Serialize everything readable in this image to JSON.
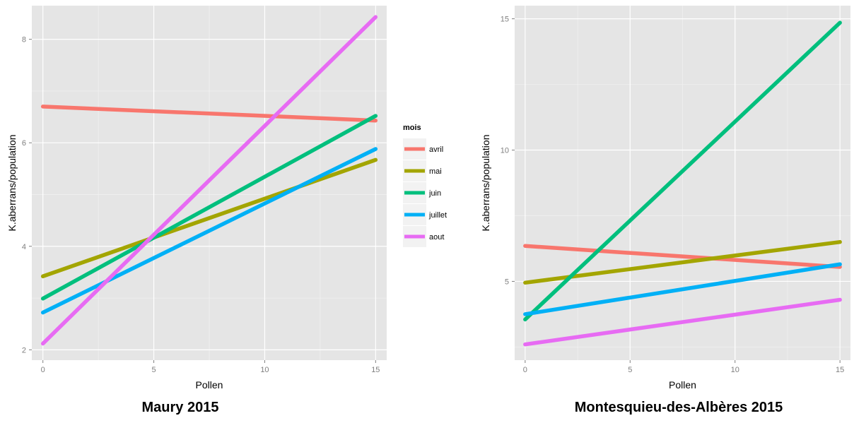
{
  "colors": {
    "avril": "#F8766D",
    "mai": "#A3A500",
    "juin": "#00BF7D",
    "juillet": "#00B0F6",
    "aout": "#E76BF3",
    "panel_bg": "#E5E5E5",
    "grid": "#FFFFFF"
  },
  "chart_data": [
    {
      "type": "line",
      "caption": "Maury 2015",
      "xlabel": "Pollen",
      "ylabel": "K.aberrans/population",
      "xlim": [
        -0.5,
        15.5
      ],
      "ylim": [
        1.8,
        8.65
      ],
      "xticks": [
        0,
        5,
        10,
        15
      ],
      "xtick_labels": [
        "0",
        "5",
        "10",
        "15"
      ],
      "yticks": [
        2,
        4,
        6,
        8
      ],
      "ytick_labels": [
        "2",
        "4",
        "6",
        "8"
      ],
      "grid": true,
      "legend": {
        "title": "mois",
        "position": "right",
        "entries": [
          "avril",
          "mai",
          "juin",
          "juillet",
          "aout"
        ]
      },
      "series": [
        {
          "name": "avril",
          "x": [
            0,
            15
          ],
          "y": [
            6.7,
            6.43
          ]
        },
        {
          "name": "mai",
          "x": [
            0,
            15
          ],
          "y": [
            3.42,
            5.67
          ]
        },
        {
          "name": "juin",
          "x": [
            0,
            15
          ],
          "y": [
            2.99,
            6.52
          ]
        },
        {
          "name": "juillet",
          "x": [
            0,
            15
          ],
          "y": [
            2.72,
            5.88
          ]
        },
        {
          "name": "aout",
          "x": [
            0,
            15
          ],
          "y": [
            2.12,
            8.43
          ]
        }
      ]
    },
    {
      "type": "line",
      "caption": "Montesquieu-des-Albères 2015",
      "xlabel": "Pollen",
      "ylabel": "K.aberrans/population",
      "xlim": [
        -0.5,
        15.5
      ],
      "ylim": [
        2.0,
        15.5
      ],
      "xticks": [
        0,
        5,
        10,
        15
      ],
      "xtick_labels": [
        "0",
        "5",
        "10",
        "15"
      ],
      "yticks": [
        5,
        10,
        15
      ],
      "ytick_labels": [
        "5",
        "10",
        "15"
      ],
      "grid": true,
      "legend": null,
      "series": [
        {
          "name": "avril",
          "x": [
            0,
            15
          ],
          "y": [
            6.35,
            5.55
          ]
        },
        {
          "name": "mai",
          "x": [
            0,
            15
          ],
          "y": [
            4.95,
            6.5
          ]
        },
        {
          "name": "juin",
          "x": [
            0,
            15
          ],
          "y": [
            3.55,
            14.85
          ]
        },
        {
          "name": "juillet",
          "x": [
            0,
            15
          ],
          "y": [
            3.75,
            5.65
          ]
        },
        {
          "name": "aout",
          "x": [
            0,
            15
          ],
          "y": [
            2.6,
            4.3
          ]
        }
      ]
    }
  ]
}
